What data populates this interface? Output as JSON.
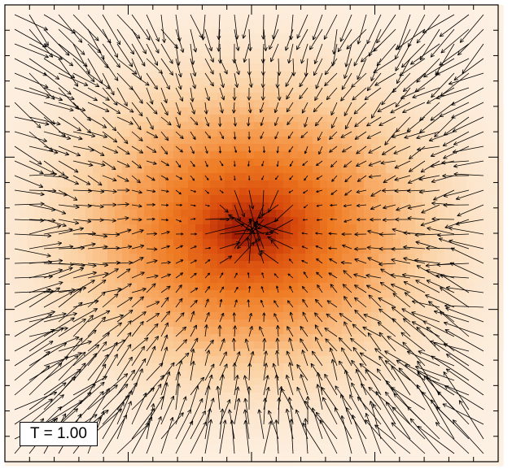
{
  "chart_data": {
    "type": "heatmap",
    "overlay": "vector-field",
    "title": "",
    "xlabel": "",
    "ylabel": "",
    "colormap": [
      "#fdf1e4",
      "#fbd2a4",
      "#f7a35a",
      "#ee7a22",
      "#d84a0c",
      "#a41e06"
    ],
    "arrow_color": "#000000",
    "annotation": "T = 1.00",
    "grid": false,
    "description_of_field": {
      "density_peak_x": 0.5,
      "density_peak_y": 0.49,
      "arrows_point_toward_center": true
    }
  }
}
